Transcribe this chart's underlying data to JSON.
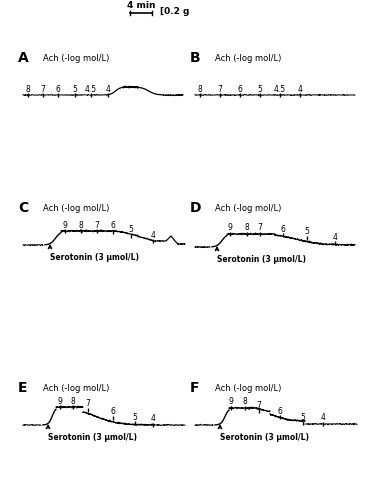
{
  "bg_color": "#ffffff",
  "scalebar_text_4min": "4 min",
  "scalebar_text_02g": "[0.2 g",
  "panels": [
    {
      "label": "A",
      "col": 0,
      "row": 0,
      "ach_label": "Ach (-log mol/L)",
      "has_serotonin": false,
      "dose_labels": [
        "8",
        "7",
        "6",
        "5",
        "4.5",
        "4"
      ],
      "trace_type": "A"
    },
    {
      "label": "B",
      "col": 1,
      "row": 0,
      "ach_label": "Ach (-log mol/L)",
      "has_serotonin": false,
      "dose_labels": [
        "8",
        "7",
        "6",
        "5",
        "4.5",
        "4"
      ],
      "trace_type": "B"
    },
    {
      "label": "C",
      "col": 0,
      "row": 1,
      "ach_label": "Ach (-log mol/L)",
      "has_serotonin": true,
      "serotonin_label": "Serotonin (3 μmol/L)",
      "dose_labels": [
        "9",
        "8",
        "7",
        "6",
        "5",
        "4"
      ],
      "trace_type": "C"
    },
    {
      "label": "D",
      "col": 1,
      "row": 1,
      "ach_label": "Ach (-log mol/L)",
      "has_serotonin": true,
      "serotonin_label": "Serotonin (3 μmol/L)",
      "dose_labels": [
        "9",
        "8",
        "7",
        "6",
        "5",
        "4"
      ],
      "trace_type": "D"
    },
    {
      "label": "E",
      "col": 0,
      "row": 2,
      "ach_label": "Ach (-log mol/L)",
      "has_serotonin": true,
      "serotonin_label": "Serotonin (3 μmol/L)",
      "dose_labels": [
        "9",
        "8",
        "7",
        "6",
        "5",
        "4"
      ],
      "trace_type": "E"
    },
    {
      "label": "F",
      "col": 1,
      "row": 2,
      "ach_label": "Ach (-log mol/L)",
      "has_serotonin": true,
      "serotonin_label": "Serotonin (3 μmol/L)",
      "dose_labels": [
        "9",
        "8",
        "7",
        "6",
        "5",
        "4"
      ],
      "trace_type": "F"
    }
  ]
}
